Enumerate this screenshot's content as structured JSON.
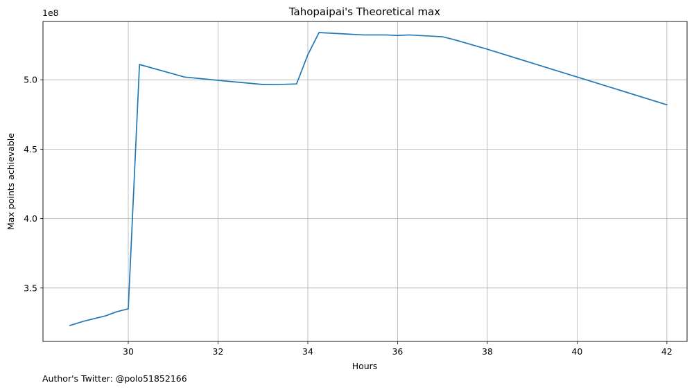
{
  "chart_data": {
    "type": "line",
    "title": "Tahopaipai's Theoretical max",
    "xlabel": "Hours",
    "ylabel": "Max points achievable",
    "y_offset_label": "1e8",
    "xlim": [
      28.1,
      42.45
    ],
    "ylim": [
      3.115,
      5.42
    ],
    "y_scale_factor": 100000000,
    "x_ticks": [
      30,
      32,
      34,
      36,
      38,
      40,
      42
    ],
    "y_ticks": [
      3.5,
      4.0,
      4.5,
      5.0
    ],
    "y_tick_labels": [
      "3.5",
      "4.0",
      "4.5",
      "5.0"
    ],
    "grid": true,
    "legend": "none",
    "series": [
      {
        "color": "#1f77b4",
        "x": [
          28.7,
          29.0,
          29.5,
          29.75,
          30.0,
          30.25,
          31.25,
          32.0,
          33.0,
          33.25,
          33.75,
          34.0,
          34.25,
          35.25,
          35.75,
          36.0,
          36.25,
          37.0,
          37.25,
          38.0,
          42.0
        ],
        "y": [
          3.23,
          3.26,
          3.3,
          3.33,
          3.35,
          5.11,
          5.02,
          4.996,
          4.966,
          4.965,
          4.97,
          5.18,
          5.34,
          5.323,
          5.323,
          5.319,
          5.323,
          5.31,
          5.29,
          5.22,
          4.82
        ]
      }
    ]
  },
  "footer": {
    "author_text": "Author's Twitter: @polo51852166"
  }
}
